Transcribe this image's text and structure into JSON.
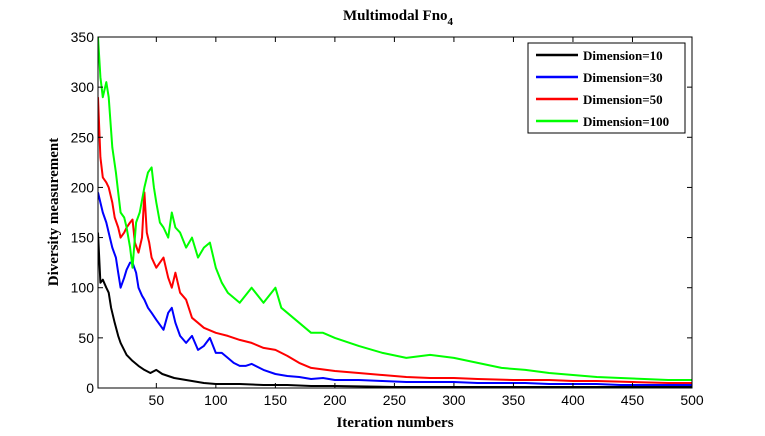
{
  "chart_data": {
    "type": "line",
    "title": "Multimodal Fno",
    "title_subscript": "4",
    "xlabel": "Iteration numbers",
    "ylabel": "Diversity measurement",
    "xlim": [
      1,
      500
    ],
    "ylim": [
      0,
      350
    ],
    "xticks": [
      50,
      100,
      150,
      200,
      250,
      300,
      350,
      400,
      450,
      500
    ],
    "yticks": [
      0,
      50,
      100,
      150,
      200,
      250,
      300,
      350
    ],
    "grid": false,
    "legend_position": "top-right",
    "series": [
      {
        "name": "Dimension=10",
        "color": "#000000",
        "x": [
          1,
          3,
          5,
          8,
          10,
          12,
          15,
          18,
          20,
          25,
          30,
          35,
          40,
          45,
          50,
          55,
          60,
          65,
          70,
          80,
          90,
          100,
          120,
          140,
          160,
          180,
          200,
          250,
          300,
          350,
          400,
          450,
          500
        ],
        "y": [
          155,
          105,
          108,
          100,
          95,
          80,
          65,
          52,
          45,
          33,
          27,
          22,
          18,
          15,
          18,
          14,
          12,
          10,
          9,
          7,
          5,
          4,
          4,
          3,
          3,
          2,
          2,
          1,
          1,
          1,
          1,
          1,
          1
        ]
      },
      {
        "name": "Dimension=30",
        "color": "#0000ff",
        "x": [
          1,
          3,
          5,
          8,
          10,
          13,
          16,
          18,
          20,
          23,
          25,
          28,
          30,
          33,
          35,
          38,
          40,
          43,
          46,
          50,
          53,
          56,
          60,
          63,
          66,
          70,
          75,
          80,
          85,
          90,
          95,
          100,
          105,
          110,
          115,
          120,
          125,
          130,
          140,
          150,
          160,
          170,
          180,
          190,
          200,
          220,
          240,
          260,
          280,
          300,
          320,
          340,
          360,
          380,
          400,
          420,
          440,
          460,
          480,
          500
        ],
        "y": [
          195,
          185,
          175,
          165,
          155,
          140,
          130,
          115,
          100,
          110,
          118,
          125,
          125,
          115,
          100,
          92,
          88,
          80,
          75,
          68,
          63,
          58,
          75,
          80,
          65,
          52,
          45,
          52,
          38,
          42,
          50,
          35,
          35,
          30,
          25,
          22,
          22,
          24,
          18,
          14,
          12,
          11,
          9,
          10,
          8,
          8,
          7,
          6,
          6,
          6,
          5,
          5,
          5,
          4,
          4,
          4,
          3,
          3,
          3,
          3
        ]
      },
      {
        "name": "Dimension=50",
        "color": "#ff0000",
        "x": [
          1,
          3,
          5,
          8,
          10,
          13,
          15,
          18,
          20,
          23,
          25,
          28,
          30,
          32,
          35,
          38,
          40,
          42,
          44,
          46,
          48,
          50,
          53,
          56,
          60,
          63,
          66,
          70,
          75,
          80,
          85,
          90,
          100,
          110,
          120,
          130,
          140,
          150,
          160,
          170,
          180,
          200,
          220,
          240,
          260,
          280,
          300,
          320,
          350,
          380,
          400,
          420,
          450,
          480,
          500
        ],
        "y": [
          290,
          230,
          210,
          205,
          200,
          185,
          170,
          160,
          150,
          155,
          160,
          165,
          168,
          145,
          135,
          150,
          195,
          155,
          145,
          130,
          125,
          120,
          125,
          130,
          110,
          100,
          115,
          95,
          88,
          70,
          65,
          60,
          55,
          52,
          48,
          45,
          40,
          38,
          32,
          25,
          20,
          17,
          15,
          13,
          11,
          10,
          10,
          9,
          8,
          8,
          7,
          7,
          6,
          5,
          5
        ]
      },
      {
        "name": "Dimension=100",
        "color": "#00ff00",
        "x": [
          1,
          3,
          5,
          8,
          10,
          13,
          16,
          18,
          20,
          23,
          25,
          28,
          30,
          33,
          36,
          40,
          43,
          46,
          48,
          50,
          53,
          56,
          60,
          63,
          66,
          70,
          75,
          80,
          85,
          90,
          95,
          100,
          105,
          110,
          120,
          130,
          140,
          150,
          155,
          160,
          170,
          180,
          190,
          200,
          220,
          240,
          260,
          280,
          300,
          320,
          340,
          360,
          380,
          400,
          420,
          440,
          460,
          480,
          500
        ],
        "y": [
          350,
          310,
          290,
          305,
          290,
          240,
          215,
          195,
          175,
          170,
          160,
          140,
          120,
          165,
          175,
          200,
          215,
          220,
          200,
          185,
          165,
          160,
          150,
          175,
          160,
          155,
          140,
          150,
          130,
          140,
          145,
          120,
          105,
          95,
          85,
          100,
          85,
          100,
          80,
          75,
          65,
          55,
          55,
          50,
          42,
          35,
          30,
          33,
          30,
          25,
          20,
          18,
          15,
          13,
          11,
          10,
          9,
          8,
          8
        ]
      }
    ]
  }
}
